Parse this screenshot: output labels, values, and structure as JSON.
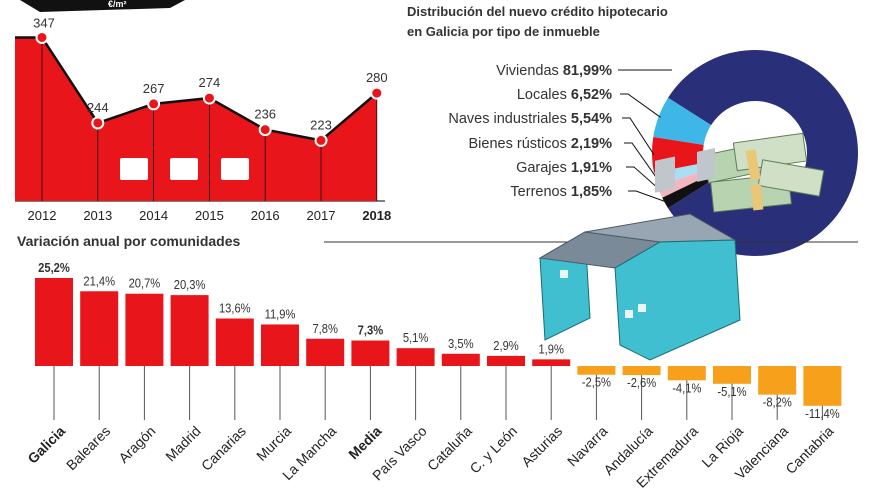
{
  "colors": {
    "red": "#e8161b",
    "orange": "#f6a01c",
    "navy": "#2a2f7a",
    "cyan": "#3fb6e8",
    "lightcyan": "#a9dff2",
    "pink": "#f3b6c0",
    "black": "#111111",
    "text": "#333333"
  },
  "header_glyph": "€/m²",
  "chart_data": [
    {
      "type": "area",
      "title": "",
      "x": [
        "2012",
        "2013",
        "2014",
        "2015",
        "2016",
        "2017",
        "2018"
      ],
      "values": [
        347,
        244,
        267,
        274,
        236,
        223,
        280
      ],
      "highlight": "2018",
      "ylim": [
        150,
        350
      ]
    },
    {
      "type": "pie",
      "title": "Distribución del nuevo crédito hipotecario",
      "subtitle": "en Galicia por tipo de inmueble",
      "labels": [
        "Viviendas",
        "Locales",
        "Naves industriales",
        "Bienes rústicos",
        "Garajes",
        "Terrenos"
      ],
      "value_labels": [
        "81,99%",
        "6,52%",
        "5,54%",
        "2,19%",
        "1,91%",
        "1,85%"
      ],
      "values": [
        81.99,
        6.52,
        5.54,
        2.19,
        1.91,
        1.85
      ],
      "slice_colors": [
        "#2a2f7a",
        "#3fb6e8",
        "#e8161b",
        "#a9dff2",
        "#f3b6c0",
        "#111111"
      ]
    },
    {
      "type": "bar",
      "title": "Variación anual por comunidades",
      "categories": [
        "Galicia",
        "Baleares",
        "Aragón",
        "Madrid",
        "Canarias",
        "Murcia",
        "La Mancha",
        "Media",
        "País Vasco",
        "Cataluña",
        "C. y León",
        "Asturias",
        "Navarra",
        "Andalucía",
        "Extremadura",
        "La Rioja",
        "Valenciana",
        "Cantabria"
      ],
      "values": [
        25.2,
        21.4,
        20.7,
        20.3,
        13.6,
        11.9,
        7.8,
        7.3,
        5.1,
        3.5,
        2.9,
        1.9,
        -2.5,
        -2.6,
        -4.1,
        -5.1,
        -8.2,
        -11.4
      ],
      "value_labels": [
        "25,2%",
        "21,4%",
        "20,7%",
        "20,3%",
        "13,6%",
        "11,9%",
        "7,8%",
        "7,3%",
        "5,1%",
        "3,5%",
        "2,9%",
        "1,9%",
        "-2,5%",
        "-2,6%",
        "-4,1%",
        "-5,1%",
        "-8,2%",
        "-11,4%"
      ],
      "bold": [
        "Galicia",
        "Media"
      ]
    }
  ]
}
